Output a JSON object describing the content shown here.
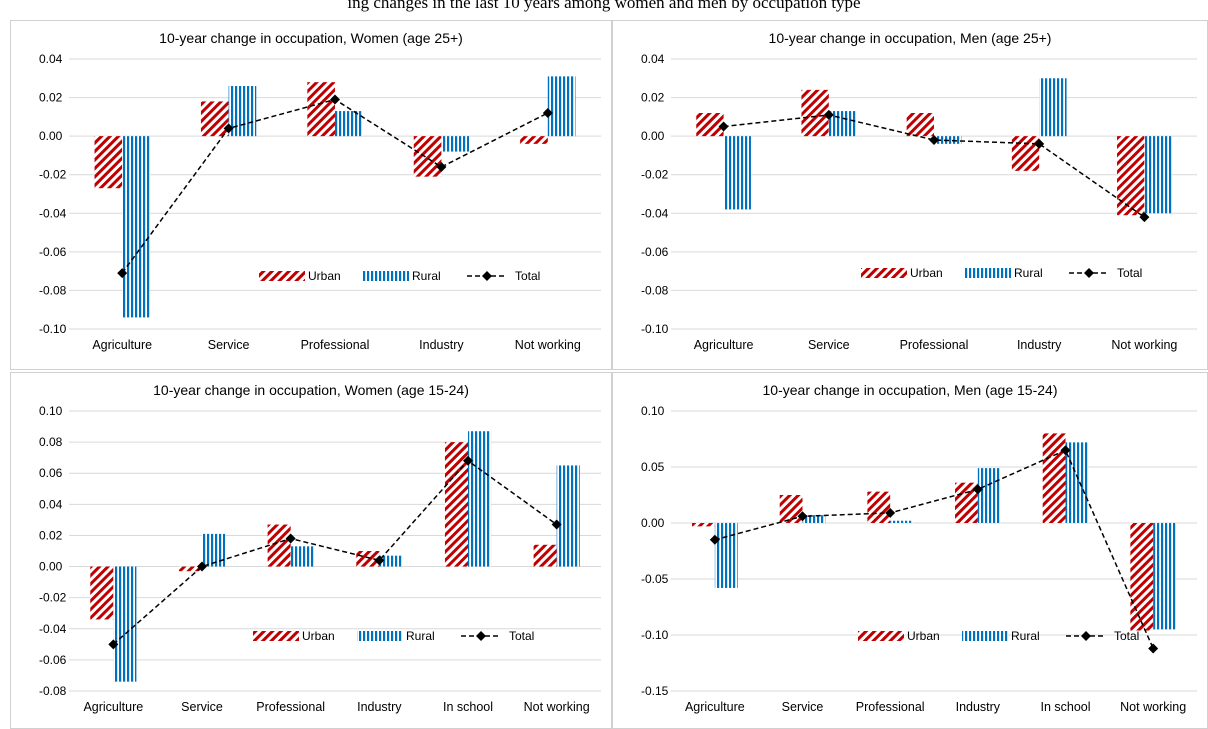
{
  "page": {
    "top_caption": "ing changes in the last 10 years among women and men by occupation type"
  },
  "colors": {
    "urban": "#c00000",
    "rural": "#0070c0",
    "total": "#000000",
    "grid": "#d9d9d9",
    "axis_text": "#404040"
  },
  "chart_data": [
    {
      "type": "bar",
      "title": "10-year change in occupation, Women (age 25+)",
      "categories": [
        "Agriculture",
        "Service",
        "Professional",
        "Industry",
        "Not working"
      ],
      "series": [
        {
          "name": "Urban",
          "type": "bar",
          "pattern": "diagonal-stripes",
          "values": [
            -0.027,
            0.018,
            0.028,
            -0.021,
            -0.004
          ]
        },
        {
          "name": "Rural",
          "type": "bar",
          "pattern": "vertical-stripes",
          "values": [
            -0.094,
            0.026,
            0.013,
            -0.008,
            0.031
          ]
        },
        {
          "name": "Total",
          "type": "line",
          "style": "dashed",
          "marker": "diamond",
          "values": [
            -0.071,
            0.004,
            0.019,
            -0.016,
            0.012
          ]
        }
      ],
      "ylim": [
        -0.1,
        0.04
      ],
      "yticks": [
        0.04,
        0.02,
        0.0,
        -0.02,
        -0.04,
        -0.06,
        -0.08,
        -0.1
      ],
      "ytick_labels": [
        "0.04",
        "0.02",
        "0.00",
        "-0.02",
        "-0.04",
        "-0.06",
        "-0.08",
        "-0.10"
      ],
      "grid": true,
      "legend_placement": "inside-bottom-right"
    },
    {
      "type": "bar",
      "title": "10-year change in occupation, Men (age 25+)",
      "categories": [
        "Agriculture",
        "Service",
        "Professional",
        "Industry",
        "Not working"
      ],
      "series": [
        {
          "name": "Urban",
          "type": "bar",
          "pattern": "diagonal-stripes",
          "values": [
            0.012,
            0.024,
            0.012,
            -0.018,
            -0.041
          ]
        },
        {
          "name": "Rural",
          "type": "bar",
          "pattern": "vertical-stripes",
          "values": [
            -0.038,
            0.013,
            -0.004,
            0.03,
            -0.04
          ]
        },
        {
          "name": "Total",
          "type": "line",
          "style": "dashed",
          "marker": "diamond",
          "values": [
            0.005,
            0.011,
            -0.002,
            -0.004,
            -0.042
          ]
        }
      ],
      "ylim": [
        -0.1,
        0.04
      ],
      "yticks": [
        0.04,
        0.02,
        0.0,
        -0.02,
        -0.04,
        -0.06,
        -0.08,
        -0.1
      ],
      "ytick_labels": [
        "0.04",
        "0.02",
        "0.00",
        "-0.02",
        "-0.04",
        "-0.06",
        "-0.08",
        "-0.10"
      ],
      "grid": true,
      "legend_placement": "inside-bottom-right"
    },
    {
      "type": "bar",
      "title": "10-year change in occupation, Women (age 15-24)",
      "categories": [
        "Agriculture",
        "Service",
        "Professional",
        "Industry",
        "In school",
        "Not working"
      ],
      "series": [
        {
          "name": "Urban",
          "type": "bar",
          "pattern": "diagonal-stripes",
          "values": [
            -0.034,
            -0.003,
            0.027,
            0.01,
            0.08,
            0.014
          ]
        },
        {
          "name": "Rural",
          "type": "bar",
          "pattern": "vertical-stripes",
          "values": [
            -0.074,
            0.021,
            0.013,
            0.007,
            0.087,
            0.065
          ]
        },
        {
          "name": "Total",
          "type": "line",
          "style": "dashed",
          "marker": "diamond",
          "values": [
            -0.05,
            0.0,
            0.018,
            0.004,
            0.068,
            0.027
          ]
        }
      ],
      "ylim": [
        -0.08,
        0.1
      ],
      "yticks": [
        0.1,
        0.08,
        0.06,
        0.04,
        0.02,
        0.0,
        -0.02,
        -0.04,
        -0.06,
        -0.08
      ],
      "ytick_labels": [
        "0.10",
        "0.08",
        "0.06",
        "0.04",
        "0.02",
        "0.00",
        "-0.02",
        "-0.04",
        "-0.06",
        "-0.08"
      ],
      "grid": true,
      "legend_placement": "inside-bottom-right"
    },
    {
      "type": "bar",
      "title": "10-year change in occupation, Men (age 15-24)",
      "categories": [
        "Agriculture",
        "Service",
        "Professional",
        "Industry",
        "In school",
        "Not working"
      ],
      "series": [
        {
          "name": "Urban",
          "type": "bar",
          "pattern": "diagonal-stripes",
          "values": [
            -0.003,
            0.025,
            0.028,
            0.036,
            0.08,
            -0.096
          ]
        },
        {
          "name": "Rural",
          "type": "bar",
          "pattern": "vertical-stripes",
          "values": [
            -0.058,
            0.007,
            0.002,
            0.049,
            0.072,
            -0.095
          ]
        },
        {
          "name": "Total",
          "type": "line",
          "style": "dashed",
          "marker": "diamond",
          "values": [
            -0.015,
            0.006,
            0.009,
            0.03,
            0.065,
            -0.112
          ]
        }
      ],
      "ylim": [
        -0.15,
        0.1
      ],
      "yticks": [
        0.1,
        0.05,
        0.0,
        -0.05,
        -0.1,
        -0.15
      ],
      "ytick_labels": [
        "0.10",
        "0.05",
        "0.00",
        "-0.05",
        "-0.10",
        "-0.15"
      ],
      "grid": true,
      "legend_placement": "inside-bottom-right"
    }
  ]
}
